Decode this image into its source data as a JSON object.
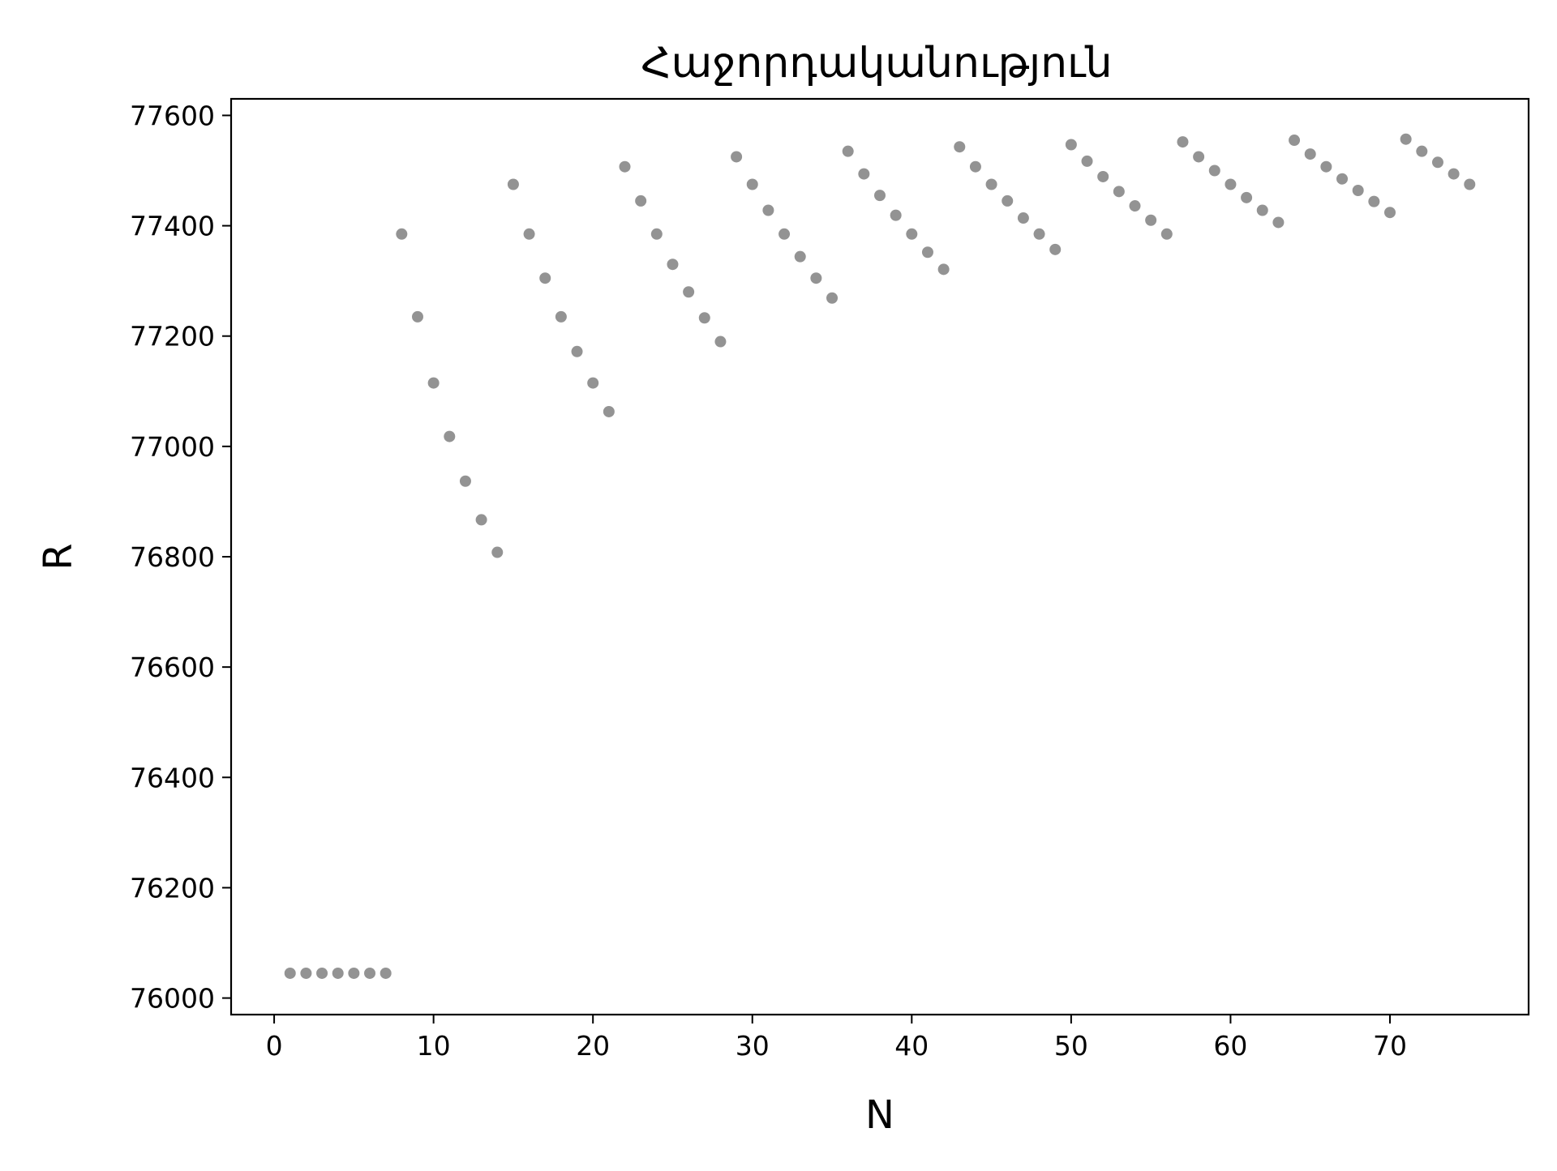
{
  "chart_data": {
    "type": "scatter",
    "title": "Հաջորդականություն",
    "xlabel": "N",
    "ylabel": "R",
    "xlim": [
      -2.7,
      78.7
    ],
    "ylim": [
      75970,
      77630
    ],
    "xticks": [
      0,
      10,
      20,
      30,
      40,
      50,
      60,
      70
    ],
    "yticks": [
      76000,
      76200,
      76400,
      76600,
      76800,
      77000,
      77200,
      77400,
      77600
    ],
    "grid": false,
    "marker_color": "#808080",
    "series": [
      {
        "x": [
          1,
          2,
          3,
          4,
          5,
          6,
          7,
          8,
          9,
          10,
          11,
          12,
          13,
          14,
          15,
          16,
          17,
          18,
          19,
          20,
          21,
          22,
          23,
          24,
          25,
          26,
          27,
          28,
          29,
          30,
          31,
          32,
          33,
          34,
          35,
          36,
          37,
          38,
          39,
          40,
          41,
          42,
          43,
          44,
          45,
          46,
          47,
          48,
          49,
          50,
          51,
          52,
          53,
          54,
          55,
          56,
          57,
          58,
          59,
          60,
          61,
          62,
          63,
          64,
          65,
          66,
          67,
          68,
          69,
          70,
          71,
          72,
          73,
          74,
          75
        ],
        "y": [
          76045,
          76045,
          76045,
          76045,
          76045,
          76045,
          76045,
          77385,
          77235,
          77115,
          77018,
          76937,
          76867,
          76808,
          77475,
          77385,
          77305,
          77235,
          77172,
          77115,
          77063,
          77507,
          77445,
          77385,
          77330,
          77280,
          77233,
          77190,
          77525,
          77475,
          77428,
          77385,
          77344,
          77305,
          77269,
          77535,
          77494,
          77455,
          77419,
          77385,
          77352,
          77321,
          77543,
          77507,
          77475,
          77445,
          77414,
          77385,
          77357,
          77547,
          77517,
          77489,
          77462,
          77436,
          77410,
          77385,
          77552,
          77525,
          77500,
          77475,
          77451,
          77428,
          77406,
          77555,
          77530,
          77507,
          77485,
          77464,
          77444,
          77424,
          77557,
          77535,
          77515,
          77494,
          77475
        ]
      }
    ]
  }
}
